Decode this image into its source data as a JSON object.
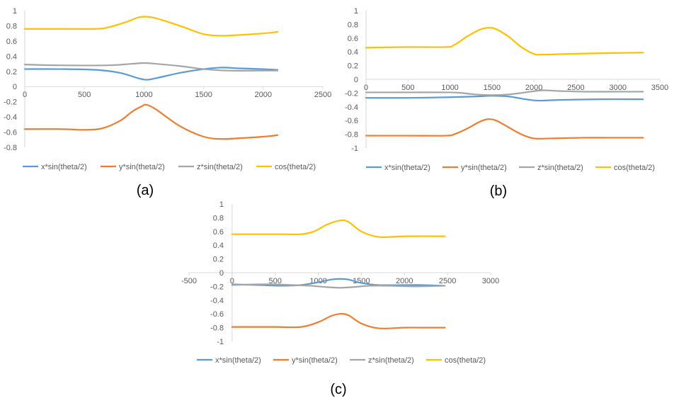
{
  "colors": {
    "x": "#5B9BD5",
    "y": "#ED7D31",
    "z": "#A5A5A5",
    "cos": "#FFC000",
    "axis": "#D9D9D9",
    "text": "#595959"
  },
  "chart_data": [
    {
      "type": "line",
      "caption": "(a)",
      "xlim": [
        0,
        2500
      ],
      "ylim": [
        -0.8,
        1
      ],
      "xticks": [
        0,
        500,
        1000,
        1500,
        2000,
        2500
      ],
      "xtick_labels": [
        "0",
        "500",
        "1000",
        "1500",
        "2000",
        "2500"
      ],
      "yticks": [
        -0.8,
        -0.6,
        -0.4,
        -0.2,
        0,
        0.2,
        0.4,
        0.6,
        0.8,
        1
      ],
      "ytick_labels": [
        "-0.8",
        "-0.6",
        "-0.4",
        "-0.2",
        "0",
        "0.2",
        "0.4",
        "0.6",
        "0.8",
        "1"
      ],
      "grid": false,
      "legend": "bottom",
      "series": [
        {
          "name": "x*sin(theta/2)",
          "key": "x",
          "x": [
            0,
            300,
            600,
            800,
            950,
            1020,
            1100,
            1300,
            1500,
            1650,
            1800,
            2000,
            2120
          ],
          "y": [
            0.23,
            0.23,
            0.22,
            0.18,
            0.11,
            0.09,
            0.11,
            0.18,
            0.23,
            0.25,
            0.24,
            0.23,
            0.22
          ]
        },
        {
          "name": "y*sin(theta/2)",
          "key": "y",
          "x": [
            0,
            300,
            500,
            650,
            800,
            900,
            980,
            1020,
            1100,
            1300,
            1500,
            1650,
            1800,
            2000,
            2120
          ],
          "y": [
            -0.56,
            -0.56,
            -0.57,
            -0.55,
            -0.45,
            -0.33,
            -0.26,
            -0.24,
            -0.3,
            -0.52,
            -0.66,
            -0.69,
            -0.68,
            -0.66,
            -0.64
          ]
        },
        {
          "name": "z*sin(theta/2)",
          "key": "z",
          "x": [
            0,
            300,
            700,
            900,
            1000,
            1100,
            1300,
            1500,
            1700,
            2000,
            2120
          ],
          "y": [
            0.29,
            0.28,
            0.28,
            0.3,
            0.31,
            0.3,
            0.27,
            0.23,
            0.21,
            0.21,
            0.21
          ]
        },
        {
          "name": "cos(theta/2)",
          "key": "cos",
          "x": [
            0,
            300,
            600,
            700,
            850,
            950,
            1020,
            1100,
            1300,
            1500,
            1650,
            1800,
            2000,
            2120
          ],
          "y": [
            0.76,
            0.76,
            0.76,
            0.78,
            0.85,
            0.91,
            0.92,
            0.9,
            0.8,
            0.69,
            0.67,
            0.68,
            0.7,
            0.72
          ]
        }
      ]
    },
    {
      "type": "line",
      "caption": "(b)",
      "xlim": [
        0,
        3500
      ],
      "ylim": [
        -1,
        1
      ],
      "xticks": [
        0,
        500,
        1000,
        1500,
        2000,
        2500,
        3000,
        3500
      ],
      "xtick_labels": [
        "0",
        "500",
        "1000",
        "1500",
        "2000",
        "2500",
        "3000",
        "3500"
      ],
      "yticks": [
        -1,
        -0.8,
        -0.6,
        -0.4,
        -0.2,
        0,
        0.2,
        0.4,
        0.6,
        0.8,
        1
      ],
      "ytick_labels": [
        "-1",
        "-0.8",
        "-0.6",
        "-0.4",
        "-0.2",
        "0",
        "0.2",
        "0.4",
        "0.6",
        "0.8",
        "1"
      ],
      "grid": false,
      "legend": "bottom",
      "series": [
        {
          "name": "x*sin(theta/2)",
          "key": "x",
          "x": [
            0,
            500,
            1000,
            1300,
            1500,
            1700,
            1900,
            2050,
            2300,
            2800,
            3300
          ],
          "y": [
            -0.27,
            -0.27,
            -0.26,
            -0.25,
            -0.24,
            -0.25,
            -0.29,
            -0.31,
            -0.3,
            -0.29,
            -0.29
          ]
        },
        {
          "name": "y*sin(theta/2)",
          "key": "y",
          "x": [
            0,
            500,
            950,
            1050,
            1200,
            1350,
            1450,
            1550,
            1700,
            1850,
            2000,
            2200,
            2600,
            3000,
            3300
          ],
          "y": [
            -0.82,
            -0.82,
            -0.82,
            -0.8,
            -0.72,
            -0.62,
            -0.58,
            -0.6,
            -0.7,
            -0.8,
            -0.86,
            -0.86,
            -0.85,
            -0.85,
            -0.85
          ]
        },
        {
          "name": "z*sin(theta/2)",
          "key": "z",
          "x": [
            0,
            500,
            1000,
            1150,
            1300,
            1500,
            1700,
            1900,
            2100,
            2300,
            2600,
            3000,
            3300
          ],
          "y": [
            -0.19,
            -0.19,
            -0.19,
            -0.2,
            -0.22,
            -0.23,
            -0.22,
            -0.19,
            -0.16,
            -0.17,
            -0.18,
            -0.18,
            -0.18
          ]
        },
        {
          "name": "cos(theta/2)",
          "key": "cos",
          "x": [
            0,
            500,
            950,
            1050,
            1200,
            1350,
            1450,
            1550,
            1700,
            1850,
            2000,
            2100,
            2400,
            2800,
            3300
          ],
          "y": [
            0.46,
            0.47,
            0.47,
            0.5,
            0.62,
            0.72,
            0.75,
            0.73,
            0.62,
            0.47,
            0.37,
            0.36,
            0.37,
            0.38,
            0.39
          ]
        }
      ]
    },
    {
      "type": "line",
      "caption": "(c)",
      "xlim": [
        -500,
        3000
      ],
      "ylim": [
        -1,
        1
      ],
      "xticks": [
        -500,
        0,
        500,
        1000,
        1500,
        2000,
        2500,
        3000
      ],
      "xtick_labels": [
        "-500",
        "0",
        "500",
        "1000",
        "1500",
        "2000",
        "2500",
        "3000"
      ],
      "yticks": [
        -1,
        -0.8,
        -0.6,
        -0.4,
        -0.2,
        0,
        0.2,
        0.4,
        0.6,
        0.8,
        1
      ],
      "ytick_labels": [
        "-1",
        "-0.8",
        "-0.6",
        "-0.4",
        "-0.2",
        "0",
        "0.2",
        "0.4",
        "0.6",
        "0.8",
        "1"
      ],
      "grid": false,
      "legend": "bottom",
      "series": [
        {
          "name": "x*sin(theta/2)",
          "key": "x",
          "x": [
            0,
            300,
            600,
            800,
            1000,
            1150,
            1250,
            1350,
            1500,
            1700,
            2000,
            2200,
            2470
          ],
          "y": [
            -0.17,
            -0.18,
            -0.19,
            -0.18,
            -0.14,
            -0.1,
            -0.09,
            -0.1,
            -0.15,
            -0.18,
            -0.18,
            -0.18,
            -0.19
          ]
        },
        {
          "name": "y*sin(theta/2)",
          "key": "y",
          "x": [
            0,
            300,
            500,
            800,
            1000,
            1150,
            1250,
            1350,
            1500,
            1700,
            2000,
            2200,
            2470
          ],
          "y": [
            -0.79,
            -0.79,
            -0.79,
            -0.79,
            -0.72,
            -0.63,
            -0.6,
            -0.62,
            -0.74,
            -0.81,
            -0.8,
            -0.8,
            -0.8
          ]
        },
        {
          "name": "z*sin(theta/2)",
          "key": "z",
          "x": [
            0,
            300,
            500,
            700,
            900,
            1100,
            1250,
            1400,
            1600,
            1800,
            2100,
            2470
          ],
          "y": [
            -0.18,
            -0.17,
            -0.17,
            -0.18,
            -0.19,
            -0.21,
            -0.22,
            -0.21,
            -0.19,
            -0.19,
            -0.2,
            -0.19
          ]
        },
        {
          "name": "cos(theta/2)",
          "key": "cos",
          "x": [
            0,
            300,
            600,
            800,
            950,
            1100,
            1250,
            1350,
            1500,
            1700,
            2000,
            2470
          ],
          "y": [
            0.56,
            0.56,
            0.56,
            0.56,
            0.6,
            0.7,
            0.76,
            0.74,
            0.6,
            0.52,
            0.53,
            0.53
          ]
        }
      ]
    }
  ]
}
